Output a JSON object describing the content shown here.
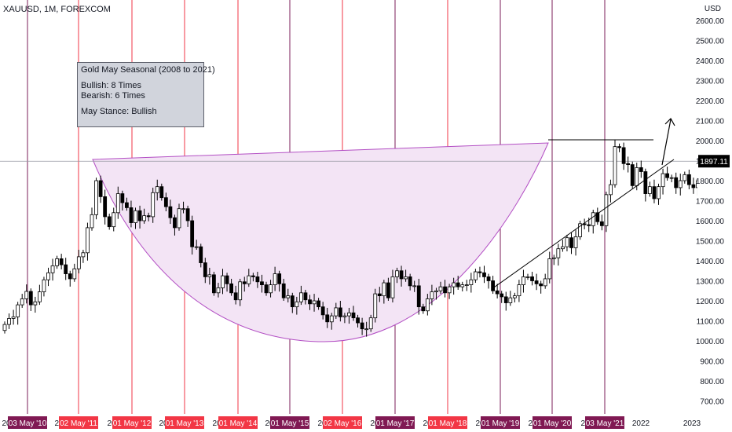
{
  "header": {
    "title": "XAUUSD, 1M, FOREXCOM"
  },
  "annotation": {
    "heading": "Gold May Seasonal (2008 to 2021)",
    "bullish": "Bullish: 8 Times",
    "bearish": "Bearish: 6 Times",
    "stance": "May Stance: Bullish"
  },
  "colors": {
    "up": "#ffffff",
    "down": "#000000",
    "wick": "#000000",
    "bullish_line": "#f23645",
    "bearish_line": "#7b1e5a",
    "bullish_label": "#f23645",
    "bearish_label": "#801953",
    "cup_fill": "#f3e4f5",
    "cup_stroke": "#b34fc4",
    "price_line": "#9598a1",
    "price_label_bg": "#000000"
  },
  "chart_data": {
    "type": "candlestick",
    "symbol": "XAUUSD",
    "timeframe": "1M",
    "exchange": "FOREXCOM",
    "currency": "USD",
    "y_ticks": [
      "2600.00",
      "2500.00",
      "2400.00",
      "2300.00",
      "2200.00",
      "2100.00",
      "2000.00",
      "1900.00",
      "1800.00",
      "1700.00",
      "1600.00",
      "1500.00",
      "1400.00",
      "1300.00",
      "1200.00",
      "1100.00",
      "1000.00",
      "900.00",
      "800.00",
      "700.00"
    ],
    "ylim": [
      650,
      2650
    ],
    "current_price": "1897.11",
    "x_ticks": [
      "20",
      "20",
      "20",
      "20",
      "20",
      "20",
      "20",
      "20",
      "20",
      "20",
      "20",
      "20",
      "2022",
      "2023"
    ],
    "may_markers": [
      {
        "label": "03 May '10",
        "bias": "bearish"
      },
      {
        "label": "02 May '11",
        "bias": "bullish"
      },
      {
        "label": "01 May '12",
        "bias": "bullish"
      },
      {
        "label": "01 May '13",
        "bias": "bullish"
      },
      {
        "label": "01 May '14",
        "bias": "bullish"
      },
      {
        "label": "01 May '15",
        "bias": "bearish"
      },
      {
        "label": "02 May '16",
        "bias": "bullish"
      },
      {
        "label": "01 May '17",
        "bias": "bearish"
      },
      {
        "label": "01 May '18",
        "bias": "bullish"
      },
      {
        "label": "01 May '19",
        "bias": "bearish"
      },
      {
        "label": "01 May '20",
        "bias": "bearish"
      },
      {
        "label": "03 May '21",
        "bias": "bearish"
      }
    ],
    "closes": [
      1082,
      1112,
      1120,
      1180,
      1210,
      1247,
      1180,
      1195,
      1245,
      1305,
      1340,
      1375,
      1410,
      1380,
      1335,
      1310,
      1360,
      1420,
      1440,
      1565,
      1630,
      1800,
      1720,
      1620,
      1570,
      1640,
      1735,
      1690,
      1665,
      1590,
      1650,
      1600,
      1625,
      1620,
      1740,
      1770,
      1715,
      1670,
      1615,
      1565,
      1660,
      1660,
      1600,
      1470,
      1470,
      1390,
      1320,
      1330,
      1240,
      1265,
      1325,
      1285,
      1240,
      1205,
      1295,
      1285,
      1325,
      1320,
      1295,
      1280,
      1240,
      1280,
      1335,
      1285,
      1215,
      1225,
      1170,
      1195,
      1240,
      1205,
      1185,
      1200,
      1170,
      1130,
      1095,
      1125,
      1165,
      1120,
      1125,
      1140,
      1115,
      1090,
      1060,
      1060,
      1115,
      1235,
      1225,
      1290,
      1215,
      1320,
      1350,
      1310,
      1320,
      1275,
      1275,
      1170,
      1150,
      1210,
      1245,
      1250,
      1270,
      1240,
      1270,
      1290,
      1270,
      1280,
      1280,
      1305,
      1345,
      1340,
      1320,
      1300,
      1250,
      1235,
      1220,
      1190,
      1215,
      1225,
      1280,
      1320,
      1320,
      1300,
      1285,
      1275,
      1310,
      1410,
      1415,
      1460,
      1470,
      1515,
      1465,
      1520,
      1585,
      1580,
      1575,
      1640,
      1595,
      1575,
      1730,
      1780,
      1970,
      1965,
      1885,
      1880,
      1775,
      1865,
      1845,
      1735,
      1770,
      1710,
      1770,
      1835,
      1815,
      1815,
      1765,
      1800,
      1830,
      1780,
      1765,
      1800,
      1830,
      1910,
      1940,
      1910,
      1897
    ],
    "trendlines": [
      {
        "name": "rising-support",
        "from": [
          "2019-08",
          1250
        ],
        "to": [
          "2022-05",
          1885
        ]
      },
      {
        "name": "resistance",
        "from": [
          "2020-08",
          2000
        ],
        "to": [
          "2022-04",
          2000
        ]
      }
    ],
    "pattern": "cup-and-handle"
  }
}
